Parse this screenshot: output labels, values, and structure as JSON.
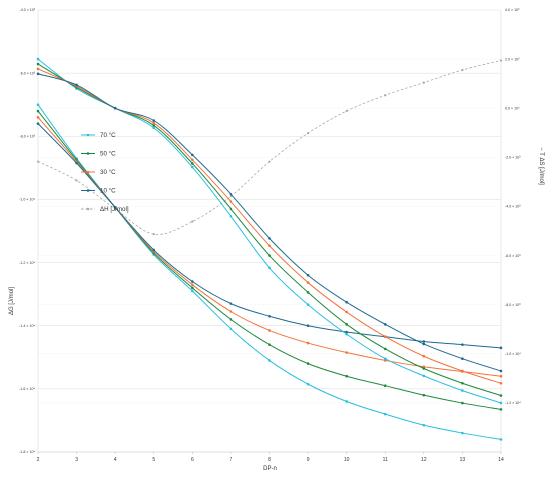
{
  "chart_data": {
    "type": "line",
    "xlabel": "DP-n",
    "ylabel_left": "ΔG [J/mol]",
    "ylabel_right": "− T ΔS [J/mol]",
    "x": [
      2,
      3,
      4,
      5,
      6,
      7,
      8,
      9,
      10,
      11,
      12,
      13,
      14
    ],
    "xlim": [
      2,
      14
    ],
    "x_ticks": [
      "2",
      "3",
      "4",
      "5",
      "6",
      "7",
      "8",
      "9",
      "10",
      "11",
      "12",
      "13",
      "14"
    ],
    "left_axis": {
      "ylim": [
        -18000,
        -4000
      ],
      "ticks": [
        {
          "value": -4000,
          "label": "-4.0 × 10³"
        },
        {
          "value": -6000,
          "label": "-6.0 × 10³"
        },
        {
          "value": -8000,
          "label": "-8.0 × 10³"
        },
        {
          "value": -10000,
          "label": "-1.0 × 10⁴"
        },
        {
          "value": -12000,
          "label": "-1.2 × 10⁴"
        },
        {
          "value": -14000,
          "label": "-1.4 × 10⁴"
        },
        {
          "value": -16000,
          "label": "-1.6 × 10⁴"
        },
        {
          "value": -18000,
          "label": "-1.8 × 10⁴"
        }
      ]
    },
    "right_axis": {
      "ylim": [
        -14000,
        4000
      ],
      "ticks": [
        {
          "value": 4000,
          "label": "4.0 × 10³"
        },
        {
          "value": 2000,
          "label": "2.0 × 10³"
        },
        {
          "value": 0,
          "label": "0.0 × 10⁰"
        },
        {
          "value": -2000,
          "label": "-2.0 × 10³"
        },
        {
          "value": -4000,
          "label": "-4.0 × 10³"
        },
        {
          "value": -6000,
          "label": "-6.0 × 10³"
        },
        {
          "value": -8000,
          "label": "-8.0 × 10³"
        },
        {
          "value": -10000,
          "label": "-1.0 × 10⁴"
        },
        {
          "value": -12000,
          "label": "-1.2 × 10⁴"
        }
      ]
    },
    "grid": "horizontal",
    "legend_position": "left",
    "series": [
      {
        "name": "70 °C",
        "color": "#29c0e0",
        "group": "ΔG",
        "axis": "left",
        "values": [
          -7000,
          -8700,
          -10250,
          -11750,
          -12900,
          -14100,
          -15100,
          -15850,
          -16400,
          -16800,
          -17150,
          -17400,
          -17600
        ]
      },
      {
        "name": "50 °C",
        "color": "#1d8a3b",
        "group": "ΔG",
        "axis": "left",
        "values": [
          -7200,
          -8750,
          -10250,
          -11700,
          -12800,
          -13800,
          -14600,
          -15200,
          -15600,
          -15900,
          -16200,
          -16450,
          -16650
        ]
      },
      {
        "name": "30 °C",
        "color": "#f0743d",
        "group": "ΔG",
        "axis": "left",
        "values": [
          -7400,
          -8800,
          -10250,
          -11650,
          -12700,
          -13550,
          -14150,
          -14550,
          -14850,
          -15100,
          -15300,
          -15450,
          -15600
        ]
      },
      {
        "name": "10 °C",
        "color": "#1e6b8f",
        "group": "ΔG",
        "axis": "left",
        "values": [
          -7600,
          -8850,
          -10250,
          -11600,
          -12600,
          -13300,
          -13700,
          -14000,
          -14200,
          -14350,
          -14500,
          -14600,
          -14700
        ]
      },
      {
        "name": "70 °C",
        "color": "#29c0e0",
        "group": "−TΔS",
        "axis": "right",
        "values": [
          2000,
          800,
          0,
          -800,
          -2400,
          -4400,
          -6500,
          -8000,
          -9200,
          -10200,
          -10900,
          -11500,
          -12000
        ]
      },
      {
        "name": "50 °C",
        "color": "#1d8a3b",
        "group": "−TΔS",
        "axis": "right",
        "values": [
          1800,
          850,
          0,
          -700,
          -2250,
          -4100,
          -6000,
          -7500,
          -8800,
          -9800,
          -10600,
          -11200,
          -11700
        ]
      },
      {
        "name": "30 °C",
        "color": "#f0743d",
        "group": "−TΔS",
        "axis": "right",
        "values": [
          1600,
          900,
          0,
          -600,
          -2100,
          -3800,
          -5600,
          -7100,
          -8300,
          -9300,
          -10100,
          -10700,
          -11200
        ]
      },
      {
        "name": "10 °C",
        "color": "#1e6b8f",
        "group": "−TΔS",
        "axis": "right",
        "values": [
          1400,
          950,
          0,
          -500,
          -1900,
          -3500,
          -5300,
          -6800,
          -7900,
          -8800,
          -9600,
          -10200,
          -10700
        ]
      },
      {
        "name": "ΔH [J/mol]",
        "color": "#a8a8a8",
        "group": "ΔH",
        "axis": "left",
        "dashed": true,
        "values": [
          -8800,
          -9400,
          -10300,
          -11100,
          -10700,
          -9900,
          -8800,
          -7900,
          -7200,
          -6700,
          -6300,
          -5900,
          -5600
        ]
      }
    ],
    "legend": [
      {
        "label": "70 °C",
        "color": "#29c0e0",
        "dashed": false
      },
      {
        "label": "50 °C",
        "color": "#1d8a3b",
        "dashed": false
      },
      {
        "label": "30 °C",
        "color": "#f0743d",
        "dashed": false
      },
      {
        "label": "10 °C",
        "color": "#1e6b8f",
        "dashed": false
      },
      {
        "label": "ΔH [J/mol]",
        "color": "#a8a8a8",
        "dashed": true
      }
    ]
  }
}
